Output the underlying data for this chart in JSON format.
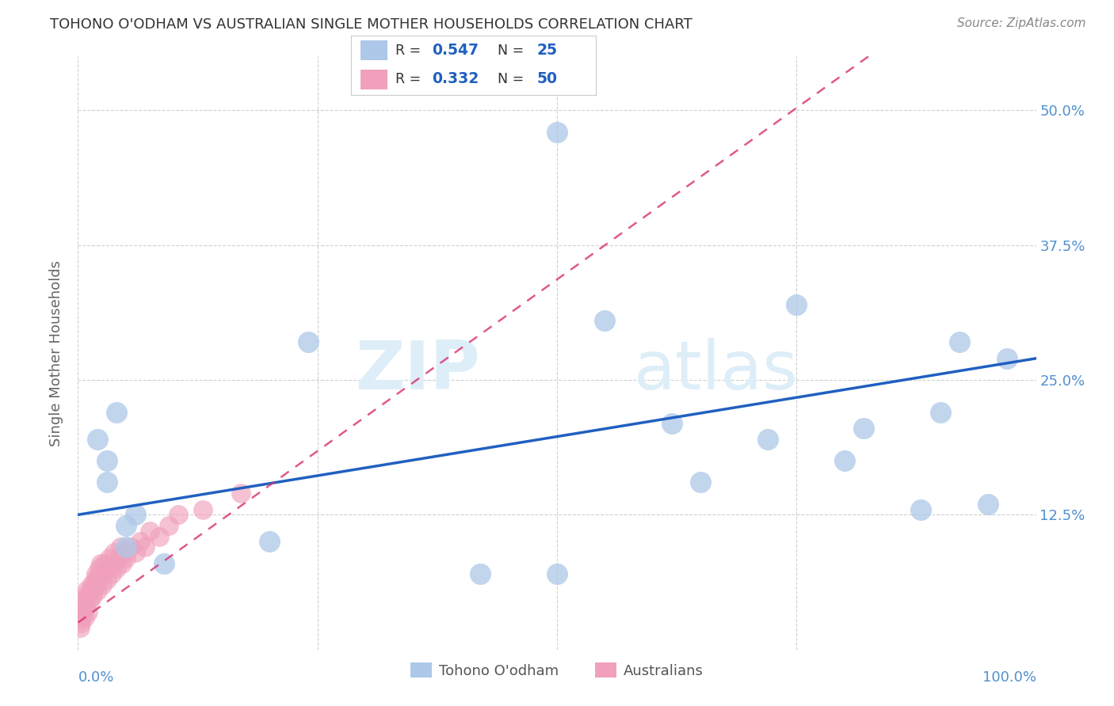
{
  "title": "TOHONO O'ODHAM VS AUSTRALIAN SINGLE MOTHER HOUSEHOLDS CORRELATION CHART",
  "source": "Source: ZipAtlas.com",
  "ylabel": "Single Mother Households",
  "xlim": [
    0,
    1.0
  ],
  "ylim": [
    0,
    0.55
  ],
  "x_ticks": [
    0.0,
    0.25,
    0.5,
    0.75,
    1.0
  ],
  "y_ticks": [
    0.0,
    0.125,
    0.25,
    0.375,
    0.5
  ],
  "y_tick_labels": [
    "",
    "12.5%",
    "25.0%",
    "37.5%",
    "50.0%"
  ],
  "legend_blue_label": "Tohono O'odham",
  "legend_pink_label": "Australians",
  "blue_color": "#adc8e8",
  "blue_line_color": "#2060c0",
  "pink_color": "#f0a0bc",
  "pink_line_color": "#d83070",
  "blue_scatter_x": [
    0.02,
    0.03,
    0.03,
    0.04,
    0.05,
    0.05,
    0.06,
    0.09,
    0.2,
    0.24,
    0.42,
    0.5,
    0.55,
    0.62,
    0.65,
    0.72,
    0.75,
    0.8,
    0.82,
    0.88,
    0.9,
    0.92,
    0.95,
    0.97,
    0.5
  ],
  "blue_scatter_y": [
    0.195,
    0.175,
    0.155,
    0.22,
    0.115,
    0.095,
    0.125,
    0.08,
    0.1,
    0.285,
    0.07,
    0.48,
    0.305,
    0.21,
    0.155,
    0.195,
    0.32,
    0.175,
    0.205,
    0.13,
    0.22,
    0.285,
    0.135,
    0.27,
    0.07
  ],
  "pink_scatter_x": [
    0.002,
    0.003,
    0.004,
    0.004,
    0.005,
    0.006,
    0.007,
    0.008,
    0.008,
    0.009,
    0.01,
    0.011,
    0.012,
    0.013,
    0.014,
    0.015,
    0.016,
    0.017,
    0.018,
    0.019,
    0.02,
    0.021,
    0.022,
    0.023,
    0.024,
    0.025,
    0.027,
    0.028,
    0.03,
    0.032,
    0.033,
    0.035,
    0.037,
    0.038,
    0.04,
    0.042,
    0.044,
    0.046,
    0.048,
    0.05,
    0.055,
    0.06,
    0.065,
    0.07,
    0.075,
    0.085,
    0.095,
    0.105,
    0.13,
    0.17
  ],
  "pink_scatter_y": [
    0.02,
    0.025,
    0.03,
    0.04,
    0.035,
    0.045,
    0.03,
    0.05,
    0.04,
    0.055,
    0.035,
    0.05,
    0.045,
    0.055,
    0.06,
    0.05,
    0.055,
    0.06,
    0.065,
    0.07,
    0.055,
    0.065,
    0.075,
    0.07,
    0.08,
    0.06,
    0.07,
    0.08,
    0.065,
    0.075,
    0.085,
    0.07,
    0.08,
    0.09,
    0.075,
    0.085,
    0.095,
    0.08,
    0.09,
    0.085,
    0.095,
    0.09,
    0.1,
    0.095,
    0.11,
    0.105,
    0.115,
    0.125,
    0.13,
    0.145
  ],
  "background_color": "#ffffff",
  "grid_color": "#d0d0d0",
  "title_color": "#333333",
  "watermark_zip": "ZIP",
  "watermark_atlas": "atlas",
  "watermark_color": "#deeef8",
  "axis_label_color": "#5090d0",
  "blue_line_start_x": 0.0,
  "blue_line_start_y": 0.125,
  "blue_line_end_x": 1.0,
  "blue_line_end_y": 0.27,
  "pink_line_start_x": 0.0,
  "pink_line_start_y": 0.025,
  "pink_line_end_x": 0.22,
  "pink_line_end_y": 0.165
}
